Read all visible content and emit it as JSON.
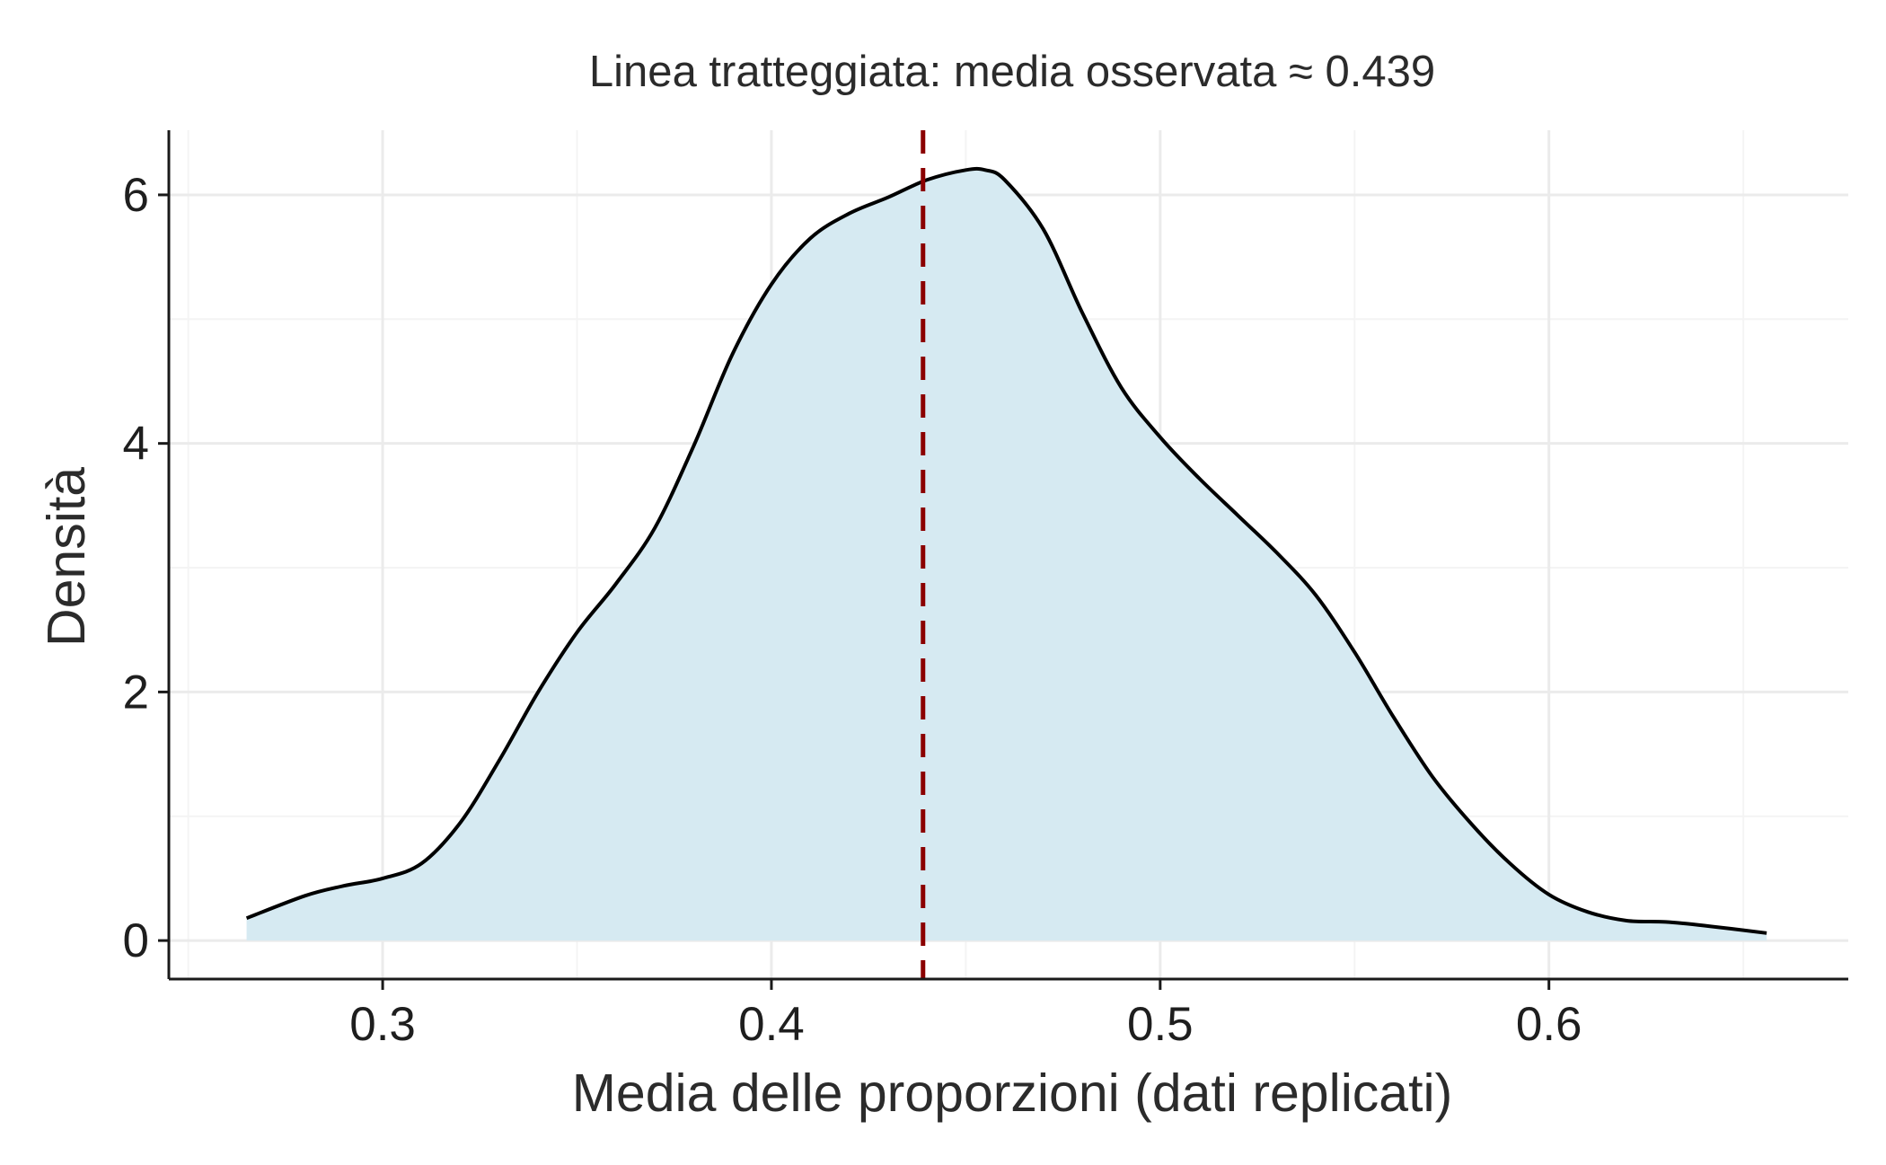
{
  "chart_data": {
    "type": "area",
    "title": "Linea tratteggiata: media osservata ≈ 0.439",
    "xlabel": "Media delle proporzioni (dati replicati)",
    "ylabel": "Densità",
    "xlim": [
      0.245,
      0.677
    ],
    "ylim": [
      -0.31,
      6.52
    ],
    "x_ticks": [
      0.3,
      0.4,
      0.5,
      0.6
    ],
    "x_tick_labels": [
      "0.3",
      "0.4",
      "0.5",
      "0.6"
    ],
    "y_ticks": [
      0,
      2,
      4,
      6
    ],
    "y_tick_labels": [
      "0",
      "2",
      "4",
      "6"
    ],
    "grid": true,
    "legend": "none",
    "fill_color": "#d6eaf2",
    "line_color": "#000000",
    "reference_line": {
      "x": 0.439,
      "style": "dashed",
      "color": "#8b0000"
    },
    "series": [
      {
        "x": [
          0.265,
          0.28,
          0.29,
          0.3,
          0.31,
          0.32,
          0.33,
          0.34,
          0.35,
          0.36,
          0.37,
          0.38,
          0.39,
          0.4,
          0.41,
          0.42,
          0.43,
          0.44,
          0.45,
          0.455,
          0.46,
          0.47,
          0.48,
          0.49,
          0.5,
          0.51,
          0.52,
          0.53,
          0.54,
          0.55,
          0.56,
          0.57,
          0.58,
          0.59,
          0.6,
          0.61,
          0.62,
          0.63,
          0.64,
          0.656
        ],
        "values": [
          0.18,
          0.36,
          0.44,
          0.5,
          0.62,
          0.95,
          1.45,
          2.0,
          2.48,
          2.87,
          3.32,
          3.98,
          4.72,
          5.28,
          5.65,
          5.85,
          5.98,
          6.12,
          6.2,
          6.2,
          6.12,
          5.72,
          5.05,
          4.45,
          4.05,
          3.72,
          3.42,
          3.12,
          2.78,
          2.32,
          1.8,
          1.32,
          0.94,
          0.62,
          0.37,
          0.23,
          0.16,
          0.15,
          0.12,
          0.06
        ]
      }
    ]
  }
}
